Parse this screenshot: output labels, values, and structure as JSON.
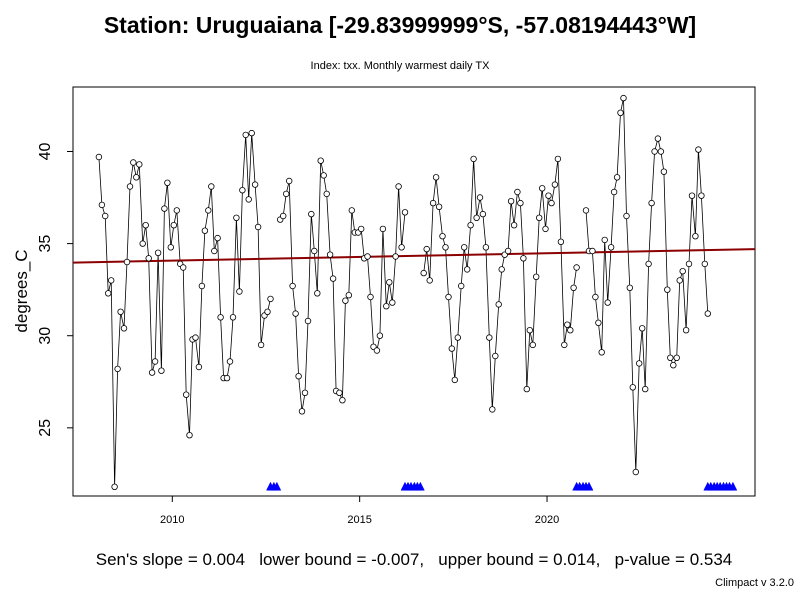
{
  "chart_data": {
    "type": "line",
    "title": "Station: Uruguaiana [-29.83999999°S, -57.08194443°W]",
    "subtitle": "Index: txx. Monthly warmest daily TX",
    "xlabel": "",
    "ylabel": "degrees_C",
    "xlim": [
      2007.35,
      2025.55
    ],
    "ylim": [
      21.3,
      43.5
    ],
    "x_ticks": [
      2010,
      2015,
      2020
    ],
    "x_tick_labels": [
      "2010",
      "2015",
      "2020"
    ],
    "y_ticks": [
      25,
      30,
      35,
      40
    ],
    "y_tick_labels": [
      "25",
      "30",
      "35",
      "40"
    ],
    "grid": false,
    "series": [
      {
        "type": "line+points",
        "color": "#000000",
        "points": [
          [
            2008.04,
            39.7
          ],
          [
            2008.12,
            37.1
          ],
          [
            2008.21,
            36.5
          ],
          [
            2008.29,
            32.3
          ],
          [
            2008.37,
            33.0
          ],
          [
            2008.46,
            21.8
          ],
          [
            2008.54,
            28.2
          ],
          [
            2008.62,
            31.3
          ],
          [
            2008.71,
            30.4
          ],
          [
            2008.79,
            34.0
          ],
          [
            2008.87,
            38.1
          ],
          [
            2008.96,
            39.4
          ],
          [
            2009.04,
            38.6
          ],
          [
            2009.12,
            39.3
          ],
          [
            2009.21,
            35.0
          ],
          [
            2009.29,
            36.0
          ],
          [
            2009.37,
            34.2
          ],
          [
            2009.46,
            28.0
          ],
          [
            2009.54,
            28.6
          ],
          [
            2009.62,
            34.5
          ],
          [
            2009.71,
            28.1
          ],
          [
            2009.79,
            36.9
          ],
          [
            2009.87,
            38.3
          ],
          [
            2009.96,
            34.8
          ],
          [
            2010.04,
            36.0
          ],
          [
            2010.12,
            36.8
          ],
          [
            2010.21,
            33.9
          ],
          [
            2010.29,
            33.7
          ],
          [
            2010.37,
            26.8
          ],
          [
            2010.46,
            24.6
          ],
          [
            2010.54,
            29.8
          ],
          [
            2010.62,
            29.9
          ],
          [
            2010.71,
            28.3
          ],
          [
            2010.79,
            32.7
          ],
          [
            2010.87,
            35.7
          ],
          [
            2010.96,
            36.8
          ],
          [
            2011.04,
            38.1
          ],
          [
            2011.12,
            34.6
          ],
          [
            2011.21,
            35.3
          ],
          [
            2011.29,
            31.0
          ],
          [
            2011.37,
            27.7
          ],
          [
            2011.46,
            27.7
          ],
          [
            2011.54,
            28.6
          ],
          [
            2011.62,
            31.0
          ],
          [
            2011.71,
            36.4
          ],
          [
            2011.79,
            32.4
          ],
          [
            2011.87,
            37.9
          ],
          [
            2011.96,
            40.9
          ],
          [
            2012.04,
            37.4
          ],
          [
            2012.12,
            41.0
          ],
          [
            2012.21,
            38.2
          ],
          [
            2012.29,
            35.9
          ],
          [
            2012.37,
            29.5
          ],
          [
            2012.46,
            31.1
          ],
          [
            2012.54,
            31.3
          ],
          [
            2012.62,
            32.0
          ],
          [
            2012.88,
            36.3
          ],
          [
            2012.96,
            36.5
          ],
          [
            2013.04,
            37.7
          ],
          [
            2013.12,
            38.4
          ],
          [
            2013.21,
            32.7
          ],
          [
            2013.29,
            31.2
          ],
          [
            2013.37,
            27.8
          ],
          [
            2013.46,
            25.9
          ],
          [
            2013.54,
            26.9
          ],
          [
            2013.62,
            30.8
          ],
          [
            2013.71,
            36.6
          ],
          [
            2013.79,
            34.6
          ],
          [
            2013.87,
            32.3
          ],
          [
            2013.96,
            39.5
          ],
          [
            2014.04,
            38.7
          ],
          [
            2014.12,
            37.7
          ],
          [
            2014.21,
            34.4
          ],
          [
            2014.29,
            33.1
          ],
          [
            2014.37,
            27.0
          ],
          [
            2014.46,
            26.9
          ],
          [
            2014.54,
            26.5
          ],
          [
            2014.62,
            31.9
          ],
          [
            2014.71,
            32.2
          ],
          [
            2014.79,
            36.8
          ],
          [
            2014.87,
            35.6
          ],
          [
            2014.96,
            35.6
          ],
          [
            2015.04,
            35.8
          ],
          [
            2015.12,
            34.2
          ],
          [
            2015.21,
            34.3
          ],
          [
            2015.29,
            32.1
          ],
          [
            2015.37,
            29.4
          ],
          [
            2015.46,
            29.2
          ],
          [
            2015.54,
            30.0
          ],
          [
            2015.62,
            35.8
          ],
          [
            2015.71,
            31.6
          ],
          [
            2015.79,
            32.9
          ],
          [
            2015.87,
            31.8
          ],
          [
            2015.96,
            34.3
          ],
          [
            2016.04,
            38.1
          ],
          [
            2016.12,
            34.8
          ],
          [
            2016.21,
            36.7
          ],
          [
            2016.71,
            33.4
          ],
          [
            2016.79,
            34.7
          ],
          [
            2016.87,
            33.0
          ],
          [
            2016.96,
            37.2
          ],
          [
            2017.04,
            38.6
          ],
          [
            2017.12,
            37.0
          ],
          [
            2017.21,
            35.4
          ],
          [
            2017.29,
            34.8
          ],
          [
            2017.37,
            32.1
          ],
          [
            2017.46,
            29.3
          ],
          [
            2017.54,
            27.6
          ],
          [
            2017.62,
            29.9
          ],
          [
            2017.71,
            32.7
          ],
          [
            2017.79,
            34.8
          ],
          [
            2017.87,
            33.6
          ],
          [
            2017.96,
            36.0
          ],
          [
            2018.04,
            39.6
          ],
          [
            2018.12,
            36.4
          ],
          [
            2018.21,
            37.5
          ],
          [
            2018.29,
            36.6
          ],
          [
            2018.37,
            34.8
          ],
          [
            2018.46,
            29.9
          ],
          [
            2018.54,
            26.0
          ],
          [
            2018.62,
            28.9
          ],
          [
            2018.71,
            31.7
          ],
          [
            2018.79,
            33.6
          ],
          [
            2018.87,
            34.4
          ],
          [
            2018.96,
            34.6
          ],
          [
            2019.04,
            37.3
          ],
          [
            2019.12,
            36.0
          ],
          [
            2019.21,
            37.8
          ],
          [
            2019.29,
            37.2
          ],
          [
            2019.37,
            34.2
          ],
          [
            2019.46,
            27.1
          ],
          [
            2019.54,
            30.3
          ],
          [
            2019.62,
            29.5
          ],
          [
            2019.71,
            33.2
          ],
          [
            2019.79,
            36.4
          ],
          [
            2019.87,
            38.0
          ],
          [
            2019.96,
            35.8
          ],
          [
            2020.04,
            37.6
          ],
          [
            2020.12,
            37.2
          ],
          [
            2020.21,
            38.2
          ],
          [
            2020.29,
            39.6
          ],
          [
            2020.37,
            35.1
          ],
          [
            2020.46,
            29.5
          ],
          [
            2020.54,
            30.6
          ],
          [
            2020.62,
            30.3
          ],
          [
            2020.71,
            32.6
          ],
          [
            2020.79,
            33.7
          ],
          [
            2021.04,
            36.8
          ],
          [
            2021.12,
            34.6
          ],
          [
            2021.21,
            34.6
          ],
          [
            2021.29,
            32.1
          ],
          [
            2021.37,
            30.7
          ],
          [
            2021.46,
            29.1
          ],
          [
            2021.54,
            35.2
          ],
          [
            2021.62,
            31.8
          ],
          [
            2021.71,
            34.8
          ],
          [
            2021.79,
            37.8
          ],
          [
            2021.87,
            38.6
          ],
          [
            2021.96,
            42.1
          ],
          [
            2022.04,
            42.9
          ],
          [
            2022.12,
            36.5
          ],
          [
            2022.21,
            32.6
          ],
          [
            2022.29,
            27.2
          ],
          [
            2022.37,
            22.6
          ],
          [
            2022.46,
            28.5
          ],
          [
            2022.54,
            30.4
          ],
          [
            2022.62,
            27.1
          ],
          [
            2022.71,
            33.9
          ],
          [
            2022.79,
            37.2
          ],
          [
            2022.87,
            40.0
          ],
          [
            2022.96,
            40.7
          ],
          [
            2023.04,
            40.0
          ],
          [
            2023.12,
            38.9
          ],
          [
            2023.21,
            32.5
          ],
          [
            2023.29,
            28.8
          ],
          [
            2023.37,
            28.4
          ],
          [
            2023.46,
            28.8
          ],
          [
            2023.54,
            33.0
          ],
          [
            2023.62,
            33.5
          ],
          [
            2023.71,
            30.3
          ],
          [
            2023.79,
            33.9
          ],
          [
            2023.87,
            37.6
          ],
          [
            2023.96,
            35.4
          ],
          [
            2024.04,
            40.1
          ],
          [
            2024.12,
            37.6
          ],
          [
            2024.21,
            33.9
          ],
          [
            2024.29,
            31.2
          ]
        ]
      },
      {
        "type": "trend",
        "color": "#8b0000",
        "start": [
          2007.35,
          33.97
        ],
        "end": [
          2025.55,
          34.7
        ]
      },
      {
        "type": "missing-markers",
        "color": "#0000ff",
        "y": 21.8,
        "x": [
          2012.62,
          2012.71,
          2012.79,
          2016.21,
          2016.29,
          2016.37,
          2016.46,
          2016.54,
          2016.62,
          2020.79,
          2020.87,
          2020.96,
          2021.04,
          2021.12,
          2024.29,
          2024.37,
          2024.46,
          2024.54,
          2024.62,
          2024.71,
          2024.79,
          2024.87,
          2024.96
        ]
      }
    ]
  },
  "stats": {
    "text": "Sen's slope = 0.004   lower bound = -0.007,   upper bound = 0.014,   p-value = 0.534"
  },
  "footer": {
    "version": "Climpact v 3.2.0"
  }
}
